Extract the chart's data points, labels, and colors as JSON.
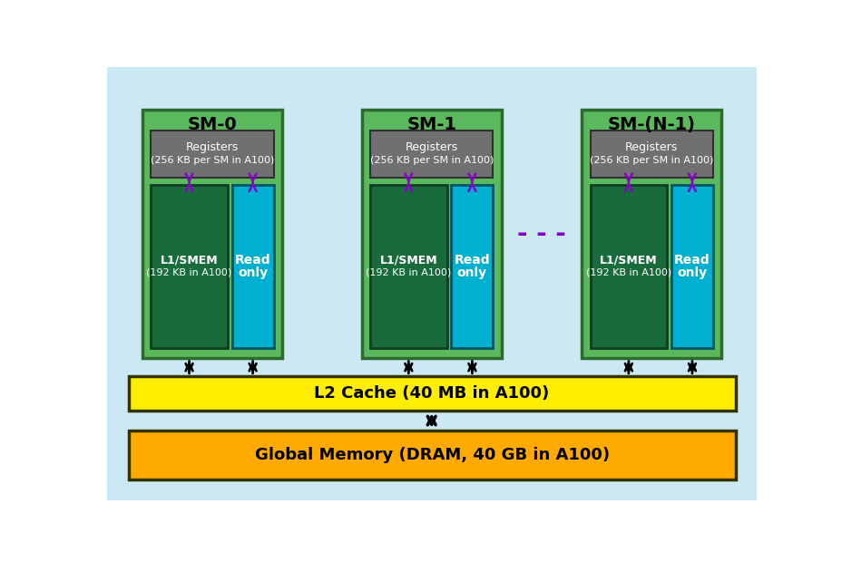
{
  "bg_color": "#cce8f4",
  "white_bg": "#ffffff",
  "sm_green": "#5cb85c",
  "sm_border": "#2d6a2d",
  "registers_gray": "#707070",
  "registers_border": "#303030",
  "l1smem_teal": "#1a6b3c",
  "l1smem_border": "#0d3d22",
  "readonly_cyan": "#00b0d0",
  "readonly_border": "#005566",
  "l2_yellow": "#ffee00",
  "l2_border": "#333300",
  "global_orange": "#ffaa00",
  "global_border": "#333300",
  "text_white": "#ffffff",
  "text_black": "#000000",
  "arrow_black": "#000000",
  "purple_arrow": "#8800cc",
  "ellipsis_color": "#8800cc",
  "sm_labels": [
    "SM-0",
    "SM-1",
    "SM-(N-1)"
  ],
  "registers_line1": "Registers",
  "registers_line2": "(256 KB per SM in A100)",
  "l1smem_line1": "L1/SMEM",
  "l1smem_line2": "(192 KB in A100)",
  "readonly_line1": "Read",
  "readonly_line2": "only",
  "l2_text": "L2 Cache (40 MB in A100)",
  "global_text": "Global Memory (DRAM, 40 GB in A100)",
  "fig_w": 9.29,
  "fig_h": 6.2,
  "dpi": 100
}
